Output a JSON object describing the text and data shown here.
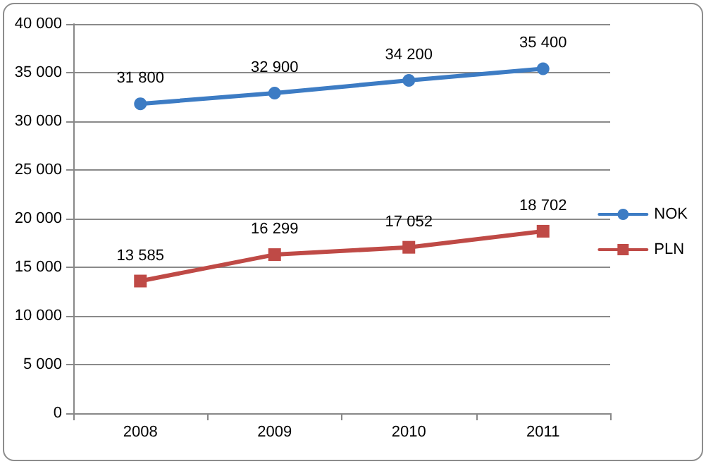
{
  "chart_data": {
    "type": "line",
    "categories": [
      "2008",
      "2009",
      "2010",
      "2011"
    ],
    "series": [
      {
        "name": "NOK",
        "color": "#3d7cc4",
        "marker": "circle",
        "values": [
          31800,
          32900,
          34200,
          35400
        ],
        "value_labels": [
          "31 800",
          "32 900",
          "34 200",
          "35 400"
        ]
      },
      {
        "name": "PLN",
        "color": "#bf4a46",
        "marker": "square",
        "values": [
          13585,
          16299,
          17052,
          18702
        ],
        "value_labels": [
          "13 585",
          "16 299",
          "17 052",
          "18 702"
        ]
      }
    ],
    "ylim": [
      0,
      40000
    ],
    "yticks": [
      {
        "value": 0,
        "label": "0"
      },
      {
        "value": 5000,
        "label": "5 000"
      },
      {
        "value": 10000,
        "label": "10 000"
      },
      {
        "value": 15000,
        "label": "15 000"
      },
      {
        "value": 20000,
        "label": "20 000"
      },
      {
        "value": 25000,
        "label": "25 000"
      },
      {
        "value": 30000,
        "label": "30 000"
      },
      {
        "value": 35000,
        "label": "35 000"
      },
      {
        "value": 40000,
        "label": "40 000"
      }
    ],
    "grid": "y",
    "legend": "right"
  }
}
